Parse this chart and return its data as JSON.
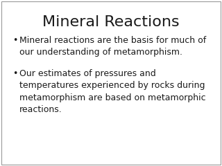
{
  "title": "Mineral Reactions",
  "title_fontsize": 16,
  "bullet_points": [
    "Mineral reactions are the basis for much of\nour understanding of metamorphism.",
    "Our estimates of pressures and\ntemperatures experienced by rocks during\nmetamorphism are based on metamorphic\nreactions."
  ],
  "bullet_symbol": "•",
  "bullet_fontsize": 9.0,
  "background_color": "#ffffff",
  "text_color": "#1a1a1a",
  "border_color": "#999999",
  "border_linewidth": 0.8
}
